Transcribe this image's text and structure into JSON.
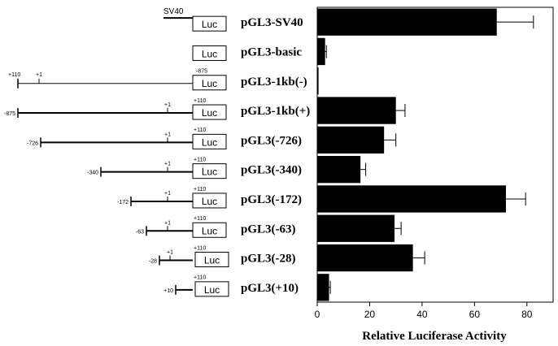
{
  "chart_data": {
    "type": "bar",
    "orientation": "horizontal",
    "title": "",
    "xlabel": "Relative Luciferase Activity",
    "ylabel": "",
    "xlim": [
      0,
      90
    ],
    "xticks": [
      0,
      20,
      40,
      60,
      80
    ],
    "grid": false,
    "legend": "none",
    "bar_color": "#000000",
    "reporter_label": "Luc",
    "categories": [
      "pGL3-SV40",
      "pGL3-basic",
      "pGL3-1kb(-)",
      "pGL3-1kb(+)",
      "pGL3(-726)",
      "pGL3(-340)",
      "pGL3(-172)",
      "pGL3(-63)",
      "pGL3(-28)",
      "pGL3(+10)"
    ],
    "values": [
      68.5,
      3,
      0.5,
      30,
      25.5,
      16.5,
      72,
      29.5,
      36.5,
      4.5
    ],
    "errors": [
      14,
      0.5,
      0,
      3.5,
      4.5,
      2,
      7.5,
      2.5,
      4.5,
      0.5
    ],
    "constructs": [
      {
        "kind": "sv40",
        "promoter": "SV40"
      },
      {
        "kind": "basic"
      },
      {
        "kind": "reverse",
        "left_label": "+110",
        "tss_label": "+1",
        "right_label": "-875"
      },
      {
        "kind": "forward",
        "left_label": "-875",
        "tss_label": "+1",
        "right_label": "+110"
      },
      {
        "kind": "forward",
        "left_label": "-726",
        "tss_label": "+1",
        "right_label": "+110"
      },
      {
        "kind": "forward",
        "left_label": "-340",
        "tss_label": "+1",
        "right_label": "+110"
      },
      {
        "kind": "forward",
        "left_label": "-172",
        "tss_label": "+1",
        "right_label": "+110"
      },
      {
        "kind": "forward",
        "left_label": "-63",
        "tss_label": "+1",
        "right_label": "+110"
      },
      {
        "kind": "forward",
        "left_label": "-28",
        "tss_label": "+1",
        "right_label": "+110"
      },
      {
        "kind": "forward",
        "left_label": "+10",
        "tss_label": "",
        "right_label": "+110"
      }
    ]
  }
}
